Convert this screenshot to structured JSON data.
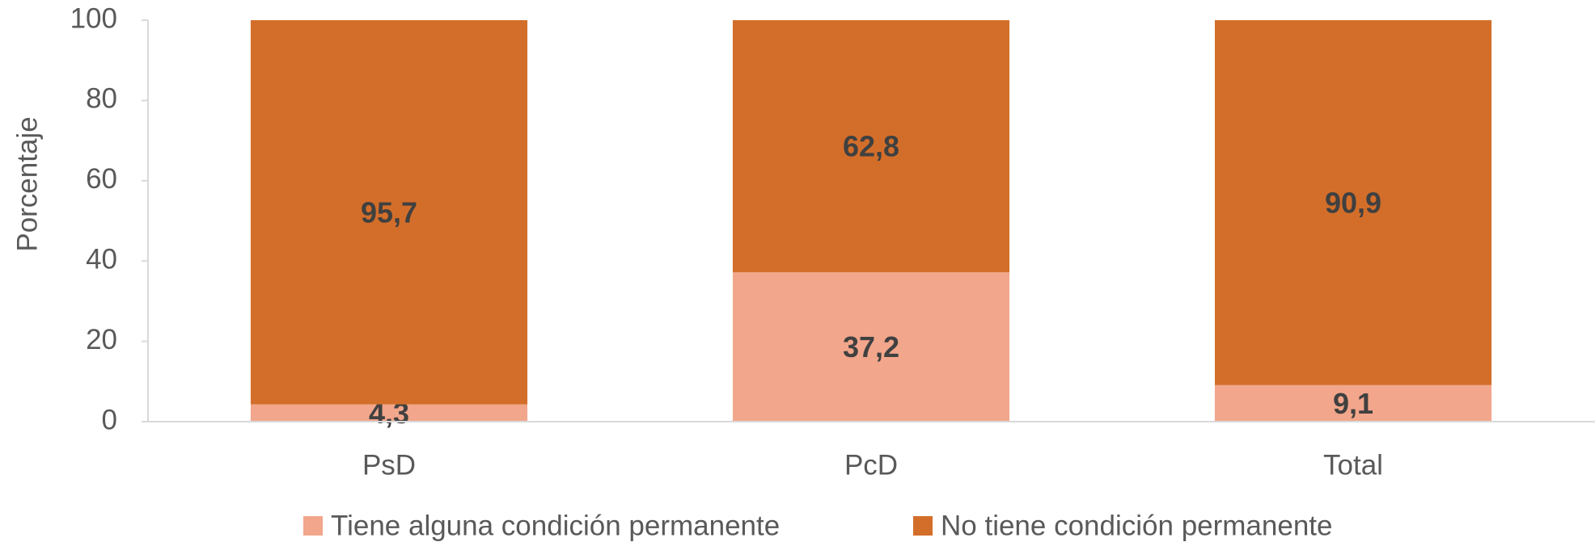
{
  "chart_data": {
    "type": "stacked_bar",
    "y_label": "Porcentaje",
    "categories": [
      "PsD",
      "PcD",
      "Total"
    ],
    "series": [
      {
        "name": "Tiene alguna condición permanente",
        "color": "#F2A68B",
        "values": [
          4.3,
          37.2,
          9.1
        ],
        "value_labels": [
          "4,3",
          "37,2",
          "9,1"
        ]
      },
      {
        "name": "No tiene condición permanente",
        "color": "#D36E2A",
        "values": [
          95.7,
          62.8,
          90.9
        ],
        "value_labels": [
          "95,7",
          "62,8",
          "90,9"
        ]
      }
    ],
    "ylim": [
      0,
      100
    ],
    "yticks": [
      0,
      20,
      40,
      60,
      80,
      100
    ],
    "grid": false,
    "legend": "bottom"
  }
}
